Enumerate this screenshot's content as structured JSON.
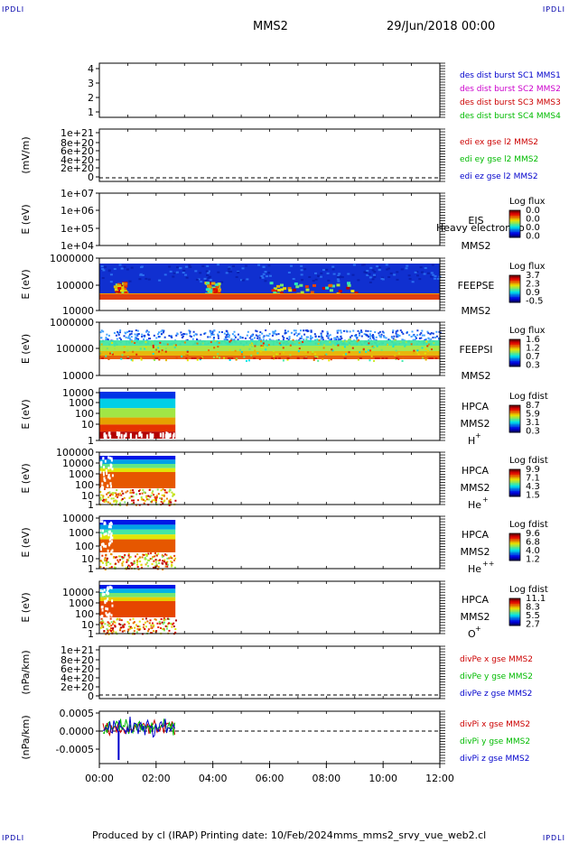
{
  "header": {
    "corner_tl": "IPDLI",
    "corner_tr": "IPDLI",
    "corner_bl": "IPDLI",
    "corner_br": "IPDLI",
    "spacecraft": "MMS2",
    "date": "29/Jun/2018 00:00"
  },
  "footer": {
    "produced": "Produced by cl (IRAP)",
    "printing": "Printing date: 10/Feb/2024",
    "file": "mms_mms2_srvy_vue_web2.cl"
  },
  "colors": {
    "blue": "#0000cc",
    "magenta": "#cc00cc",
    "red": "#cc0000",
    "green": "#00bb00"
  },
  "chart_data": [
    {
      "type": "line",
      "ticks": [
        "4",
        "3",
        "2",
        "1"
      ],
      "ylim": [
        0.7,
        4.3
      ],
      "legend": [
        {
          "label": "des dist burst SC1 MMS1",
          "color": "#0000cc"
        },
        {
          "label": "des dist burst SC2 MMS2",
          "color": "#cc00cc"
        },
        {
          "label": "des dist burst SC3 MMS3",
          "color": "#cc0000"
        },
        {
          "label": "des dist burst SC4 MMS4",
          "color": "#00bb00"
        }
      ]
    },
    {
      "type": "line",
      "ylabel": "(mV/m)",
      "ticks": [
        "1e+21",
        "8e+20",
        "6e+20",
        "4e+20",
        "2e+20",
        "0"
      ],
      "legend": [
        {
          "label": "edi ex gse l2 MMS2",
          "color": "#cc0000"
        },
        {
          "label": "edi ey gse l2 MMS2",
          "color": "#00bb00"
        },
        {
          "label": "edi ez gse l2 MMS2",
          "color": "#0000cc"
        }
      ]
    },
    {
      "type": "heatmap",
      "ylabel": "E (eV)",
      "ticks": [
        "1e+07",
        "1e+06",
        "1e+05",
        "1e+04"
      ],
      "instrument": "EIS",
      "sc": "MMS2",
      "overlay": "Heavy electron to",
      "colorbar_title": "Log flux",
      "colorbar_ticks": [
        "0.0",
        "0.0",
        "0.0",
        "0.0"
      ]
    },
    {
      "type": "heatmap",
      "ylabel": "E (eV)",
      "ticks": [
        "1000000",
        "100000",
        "10000"
      ],
      "instrument": "FEEPSE",
      "sc": "MMS2",
      "colorbar_title": "Log flux",
      "colorbar_ticks": [
        "3.7",
        "2.3",
        "0.9",
        "-0.5"
      ]
    },
    {
      "type": "heatmap",
      "ylabel": "E (eV)",
      "ticks": [
        "1000000",
        "100000",
        "10000"
      ],
      "instrument": "FEEPSI",
      "sc": "MMS2",
      "colorbar_title": "Log flux",
      "colorbar_ticks": [
        "1.6",
        "1.2",
        "0.7",
        "0.3"
      ]
    },
    {
      "type": "heatmap",
      "ylabel": "E (eV)",
      "ticks": [
        "10000",
        "1000",
        "100",
        "10",
        "1"
      ],
      "instrument": "HPCA",
      "sc": "MMS2",
      "species": "H",
      "charge": "+",
      "colorbar_title": "Log fdist",
      "colorbar_ticks": [
        "8.7",
        "5.9",
        "3.1",
        "0.3"
      ]
    },
    {
      "type": "heatmap",
      "ylabel": "E (eV)",
      "ticks": [
        "100000",
        "10000",
        "1000",
        "100",
        "10",
        "1"
      ],
      "instrument": "HPCA",
      "sc": "MMS2",
      "species": "He",
      "charge": "+",
      "colorbar_title": "Log fdist",
      "colorbar_ticks": [
        "9.9",
        "7.1",
        "4.3",
        "1.5"
      ]
    },
    {
      "type": "heatmap",
      "ylabel": "E (eV)",
      "ticks": [
        "10000",
        "1000",
        "100",
        "10",
        "1"
      ],
      "instrument": "HPCA",
      "sc": "MMS2",
      "species": "He",
      "charge": "++",
      "colorbar_title": "Log fdist",
      "colorbar_ticks": [
        "9.6",
        "6.8",
        "4.0",
        "1.2"
      ]
    },
    {
      "type": "heatmap",
      "ylabel": "E (eV)",
      "ticks": [
        "10000",
        "1000",
        "100",
        "10",
        "1"
      ],
      "instrument": "HPCA",
      "sc": "MMS2",
      "species": "O",
      "charge": "+",
      "colorbar_title": "Log fdist",
      "colorbar_ticks": [
        "11.1",
        "8.3",
        "5.5",
        "2.7"
      ]
    },
    {
      "type": "line",
      "ylabel": "(nPa/km)",
      "ticks": [
        "1e+21",
        "8e+20",
        "6e+20",
        "4e+20",
        "2e+20",
        "0"
      ],
      "legend": [
        {
          "label": "divPe x gse MMS2",
          "color": "#cc0000"
        },
        {
          "label": "divPe y gse MMS2",
          "color": "#00bb00"
        },
        {
          "label": "divPe z gse MMS2",
          "color": "#0000cc"
        }
      ]
    },
    {
      "type": "line",
      "ylabel": "(nPa/km)",
      "ticks": [
        "0.0005",
        "0.0000",
        "-0.0005"
      ],
      "ylim": [
        -0.001,
        0.0006
      ],
      "legend": [
        {
          "label": "divPi x gse MMS2",
          "color": "#cc0000"
        },
        {
          "label": "divPi y gse MMS2",
          "color": "#00bb00"
        },
        {
          "label": "divPi z gse MMS2",
          "color": "#0000cc"
        }
      ]
    }
  ],
  "xaxis": {
    "ticks": [
      "00:00",
      "02:00",
      "04:00",
      "06:00",
      "08:00",
      "10:00",
      "12:00"
    ],
    "xlim_hours": [
      0,
      12
    ]
  }
}
